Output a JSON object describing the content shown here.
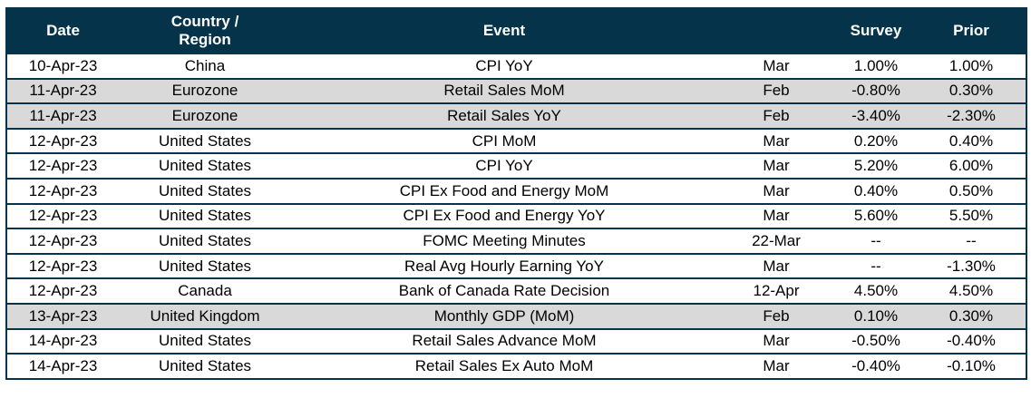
{
  "colors": {
    "header_bg": "#053349",
    "border": "#053349",
    "shaded_row_bg": "#D9D9D9",
    "row_bg": "#FFFFFF",
    "header_text": "#FFFFFF",
    "body_text": "#000000"
  },
  "table": {
    "columns": [
      {
        "key": "date",
        "label": "Date"
      },
      {
        "key": "country",
        "label": "Country / Region"
      },
      {
        "key": "event",
        "label": "Event"
      },
      {
        "key": "period",
        "label": ""
      },
      {
        "key": "survey",
        "label": "Survey"
      },
      {
        "key": "prior",
        "label": "Prior"
      }
    ],
    "rows": [
      {
        "date": "10-Apr-23",
        "country": "China",
        "event": "CPI YoY",
        "period": "Mar",
        "survey": "1.00%",
        "prior": "1.00%",
        "shaded": false
      },
      {
        "date": "11-Apr-23",
        "country": "Eurozone",
        "event": "Retail Sales MoM",
        "period": "Feb",
        "survey": "-0.80%",
        "prior": "0.30%",
        "shaded": true
      },
      {
        "date": "11-Apr-23",
        "country": "Eurozone",
        "event": "Retail Sales YoY",
        "period": "Feb",
        "survey": "-3.40%",
        "prior": "-2.30%",
        "shaded": true
      },
      {
        "date": "12-Apr-23",
        "country": "United States",
        "event": "CPI MoM",
        "period": "Mar",
        "survey": "0.20%",
        "prior": "0.40%",
        "shaded": false
      },
      {
        "date": "12-Apr-23",
        "country": "United States",
        "event": "CPI YoY",
        "period": "Mar",
        "survey": "5.20%",
        "prior": "6.00%",
        "shaded": false
      },
      {
        "date": "12-Apr-23",
        "country": "United States",
        "event": "CPI Ex Food and Energy MoM",
        "period": "Mar",
        "survey": "0.40%",
        "prior": "0.50%",
        "shaded": false
      },
      {
        "date": "12-Apr-23",
        "country": "United States",
        "event": "CPI Ex Food and Energy YoY",
        "period": "Mar",
        "survey": "5.60%",
        "prior": "5.50%",
        "shaded": false
      },
      {
        "date": "12-Apr-23",
        "country": "United States",
        "event": "FOMC Meeting Minutes",
        "period": "22-Mar",
        "survey": "--",
        "prior": "--",
        "shaded": false
      },
      {
        "date": "12-Apr-23",
        "country": "United States",
        "event": "Real Avg Hourly Earning YoY",
        "period": "Mar",
        "survey": "--",
        "prior": "-1.30%",
        "shaded": false
      },
      {
        "date": "12-Apr-23",
        "country": "Canada",
        "event": "Bank of Canada Rate Decision",
        "period": "12-Apr",
        "survey": "4.50%",
        "prior": "4.50%",
        "shaded": false
      },
      {
        "date": "13-Apr-23",
        "country": "United Kingdom",
        "event": "Monthly GDP (MoM)",
        "period": "Feb",
        "survey": "0.10%",
        "prior": "0.30%",
        "shaded": true
      },
      {
        "date": "14-Apr-23",
        "country": "United States",
        "event": "Retail Sales Advance MoM",
        "period": "Mar",
        "survey": "-0.50%",
        "prior": "-0.40%",
        "shaded": false
      },
      {
        "date": "14-Apr-23",
        "country": "United States",
        "event": "Retail Sales Ex Auto MoM",
        "period": "Mar",
        "survey": "-0.40%",
        "prior": "-0.10%",
        "shaded": false
      }
    ]
  }
}
